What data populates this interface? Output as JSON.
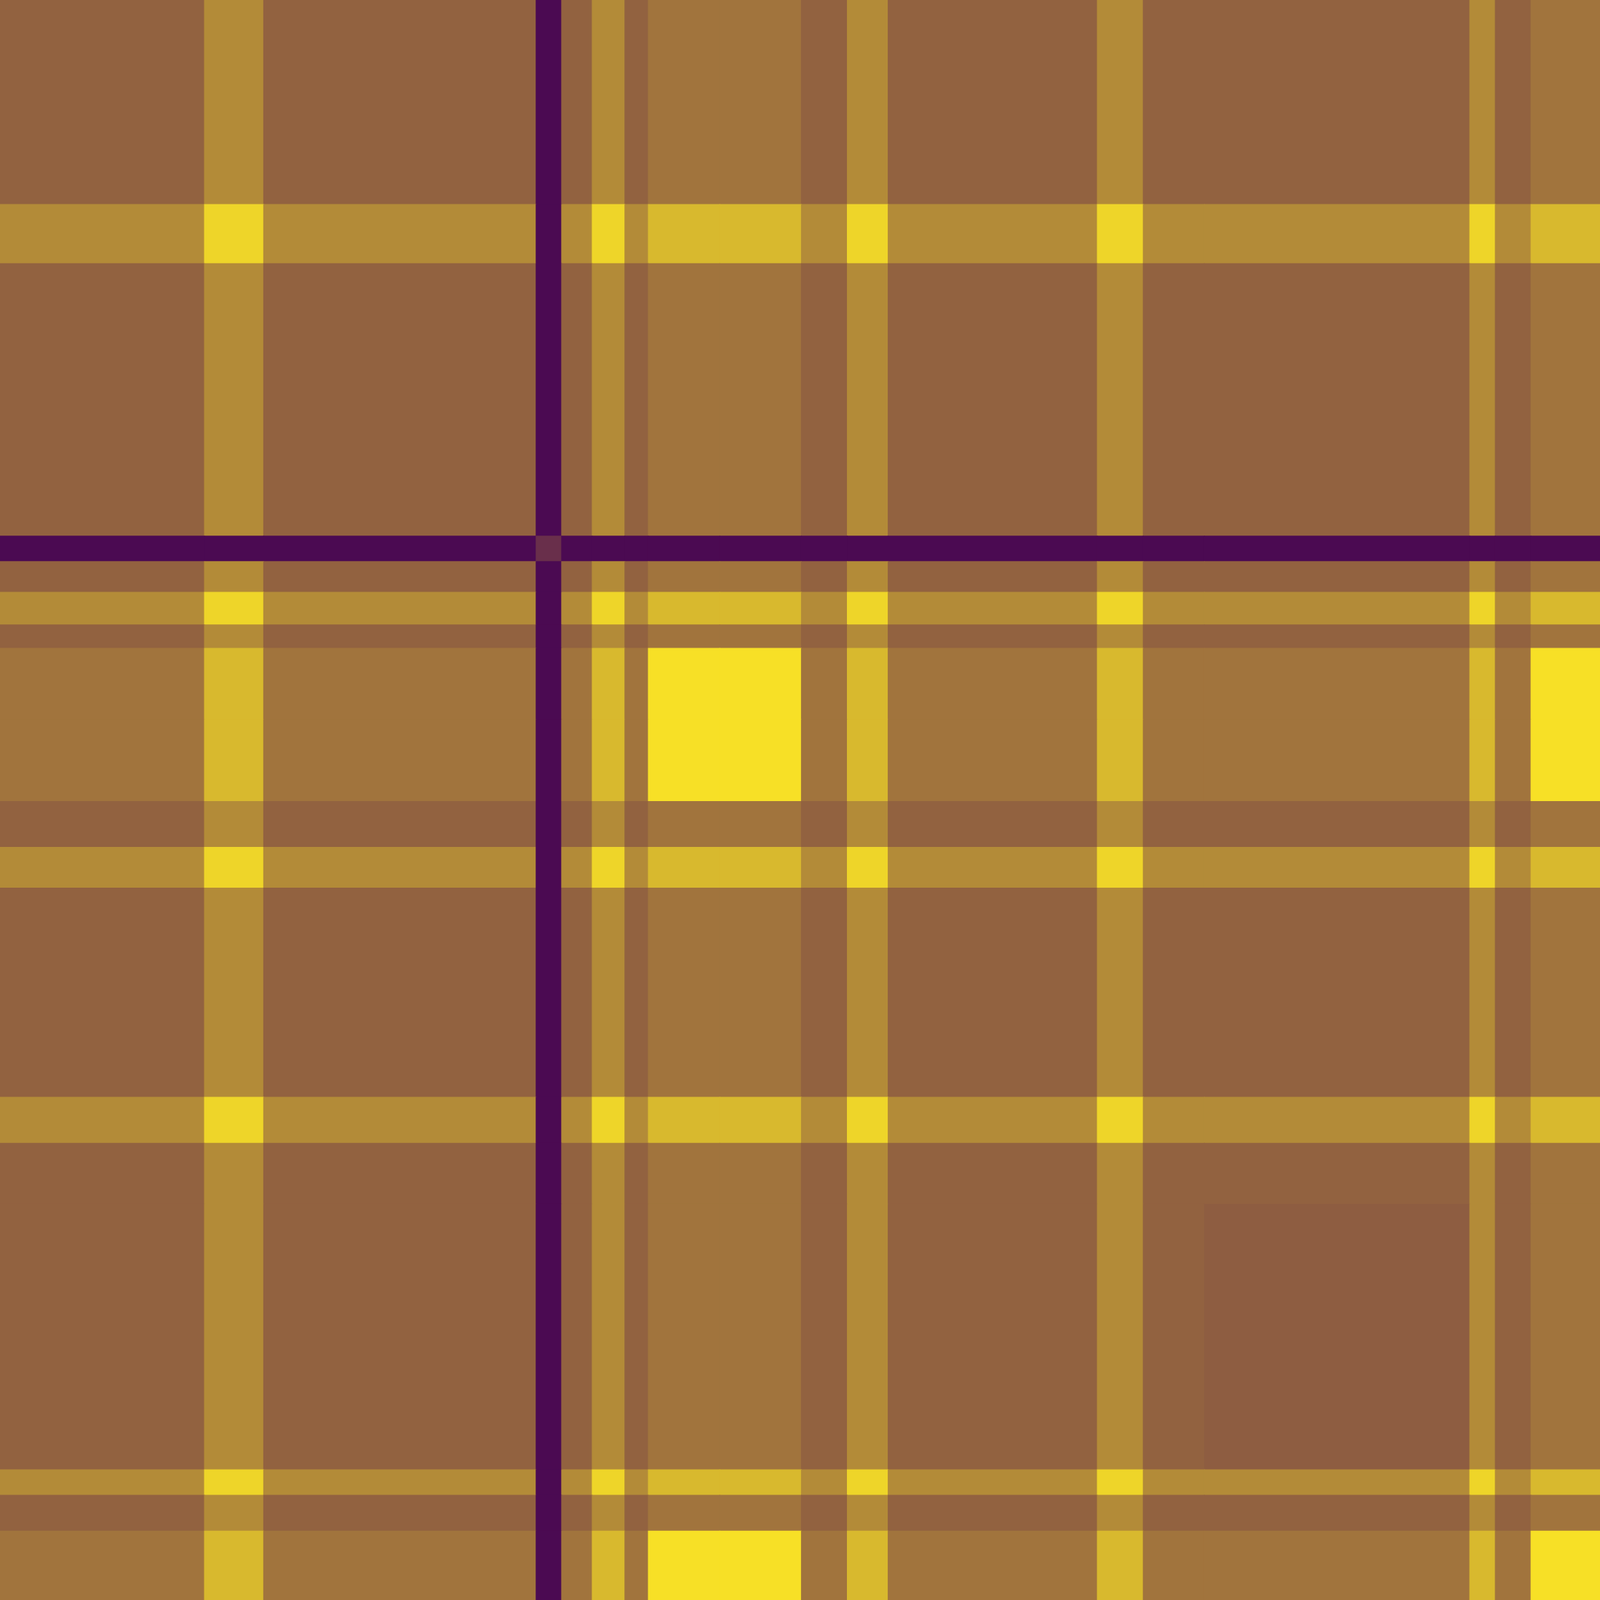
{
  "chart_data": {
    "type": "heatmap",
    "tick_labels": false,
    "grid": false,
    "edges": [
      0,
      200,
      258,
      525,
      550,
      580,
      612,
      635,
      705,
      785,
      830,
      870,
      1075,
      1120,
      1180,
      1440,
      1465,
      1500,
      1568
    ],
    "color_range": [
      0,
      1
    ],
    "color": [
      "#440154",
      "#fde725"
    ],
    "cells": [
      [
        0.42,
        0.6,
        0.42,
        0.04,
        0.42,
        0.6,
        0.42,
        0.5,
        0.5,
        0.42,
        0.6,
        0.42,
        0.6,
        0.42,
        0.42,
        0.6,
        0.42,
        0.5
      ],
      [
        0.6,
        0.92,
        0.6,
        0.04,
        0.6,
        0.92,
        0.6,
        0.8,
        0.8,
        0.6,
        0.92,
        0.6,
        0.92,
        0.6,
        0.6,
        0.92,
        0.6,
        0.8
      ],
      [
        0.42,
        0.6,
        0.42,
        0.04,
        0.42,
        0.6,
        0.42,
        0.5,
        0.5,
        0.42,
        0.6,
        0.42,
        0.6,
        0.42,
        0.42,
        0.6,
        0.42,
        0.5
      ],
      [
        0.04,
        0.04,
        0.04,
        0.2,
        0.04,
        0.04,
        0.04,
        0.04,
        0.04,
        0.04,
        0.04,
        0.04,
        0.04,
        0.04,
        0.04,
        0.04,
        0.04,
        0.04
      ],
      [
        0.42,
        0.6,
        0.42,
        0.04,
        0.42,
        0.6,
        0.42,
        0.5,
        0.5,
        0.42,
        0.6,
        0.42,
        0.6,
        0.42,
        0.42,
        0.6,
        0.42,
        0.5
      ],
      [
        0.6,
        0.92,
        0.6,
        0.04,
        0.6,
        0.92,
        0.6,
        0.8,
        0.8,
        0.6,
        0.92,
        0.6,
        0.92,
        0.6,
        0.6,
        0.92,
        0.6,
        0.8
      ],
      [
        0.42,
        0.6,
        0.42,
        0.04,
        0.42,
        0.6,
        0.42,
        0.5,
        0.5,
        0.42,
        0.6,
        0.42,
        0.6,
        0.42,
        0.42,
        0.6,
        0.42,
        0.5
      ],
      [
        0.5,
        0.8,
        0.5,
        0.04,
        0.5,
        0.8,
        0.5,
        0.97,
        0.97,
        0.5,
        0.8,
        0.5,
        0.8,
        0.5,
        0.5,
        0.8,
        0.5,
        0.97
      ],
      [
        0.5,
        0.8,
        0.5,
        0.04,
        0.5,
        0.8,
        0.5,
        0.97,
        0.97,
        0.5,
        0.8,
        0.5,
        0.8,
        0.5,
        0.5,
        0.8,
        0.5,
        0.97
      ],
      [
        0.42,
        0.6,
        0.42,
        0.04,
        0.42,
        0.6,
        0.42,
        0.5,
        0.5,
        0.42,
        0.6,
        0.42,
        0.6,
        0.42,
        0.42,
        0.6,
        0.42,
        0.5
      ],
      [
        0.6,
        0.92,
        0.6,
        0.04,
        0.6,
        0.92,
        0.6,
        0.8,
        0.8,
        0.6,
        0.92,
        0.6,
        0.92,
        0.6,
        0.6,
        0.92,
        0.6,
        0.8
      ],
      [
        0.42,
        0.6,
        0.42,
        0.04,
        0.42,
        0.6,
        0.42,
        0.5,
        0.5,
        0.42,
        0.6,
        0.42,
        0.6,
        0.42,
        0.42,
        0.6,
        0.42,
        0.5
      ],
      [
        0.6,
        0.92,
        0.6,
        0.04,
        0.6,
        0.92,
        0.6,
        0.8,
        0.8,
        0.6,
        0.92,
        0.6,
        0.92,
        0.6,
        0.6,
        0.92,
        0.6,
        0.8
      ],
      [
        0.42,
        0.6,
        0.42,
        0.04,
        0.42,
        0.6,
        0.42,
        0.5,
        0.5,
        0.42,
        0.6,
        0.42,
        0.6,
        0.42,
        0.42,
        0.6,
        0.42,
        0.5
      ],
      [
        0.42,
        0.6,
        0.42,
        0.04,
        0.42,
        0.6,
        0.42,
        0.5,
        0.5,
        0.42,
        0.6,
        0.42,
        0.6,
        0.42,
        0.4,
        0.6,
        0.42,
        0.5
      ],
      [
        0.6,
        0.92,
        0.6,
        0.04,
        0.6,
        0.92,
        0.6,
        0.8,
        0.8,
        0.6,
        0.92,
        0.6,
        0.92,
        0.6,
        0.6,
        0.92,
        0.6,
        0.8
      ],
      [
        0.42,
        0.6,
        0.42,
        0.04,
        0.42,
        0.6,
        0.42,
        0.5,
        0.5,
        0.42,
        0.6,
        0.42,
        0.6,
        0.42,
        0.42,
        0.6,
        0.42,
        0.5
      ],
      [
        0.5,
        0.8,
        0.5,
        0.04,
        0.5,
        0.8,
        0.5,
        0.97,
        0.97,
        0.5,
        0.8,
        0.5,
        0.8,
        0.5,
        0.5,
        0.8,
        0.5,
        0.97
      ]
    ]
  }
}
